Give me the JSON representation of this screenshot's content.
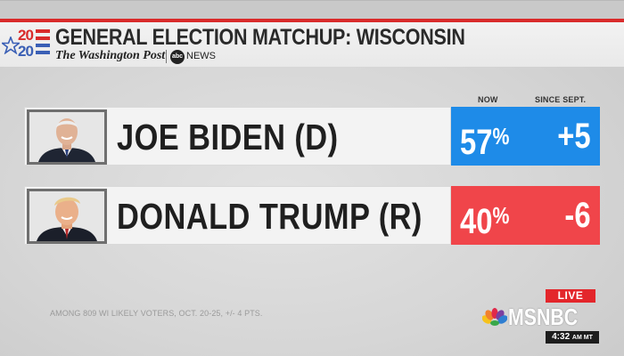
{
  "header": {
    "logo_year_top": "20",
    "logo_year_bottom": "20",
    "title": "GENERAL ELECTION MATCHUP: WISCONSIN",
    "publisher": "The Washington Post",
    "network_badge": "abc",
    "network_suffix": "NEWS"
  },
  "columns": {
    "now": "NOW",
    "since": "SINCE SEPT."
  },
  "candidates": [
    {
      "name": "JOE BIDEN (D)",
      "pct": "57",
      "pct_sign": "%",
      "change": "+5",
      "color": "#1e8be8"
    },
    {
      "name": "DONALD TRUMP (R)",
      "pct": "40",
      "pct_sign": "%",
      "change": "-6",
      "color": "#f0454a"
    }
  ],
  "footnote": "AMONG 809 WI LIKELY VOTERS, OCT. 20-25, +/- 4 PTS.",
  "bug": {
    "live": "LIVE",
    "network": "MSNBC",
    "time": "4:32",
    "ampm": "AM MT"
  },
  "colors": {
    "accent_red": "#d92b2b",
    "dem_blue": "#1e8be8",
    "rep_red": "#f0454a"
  }
}
